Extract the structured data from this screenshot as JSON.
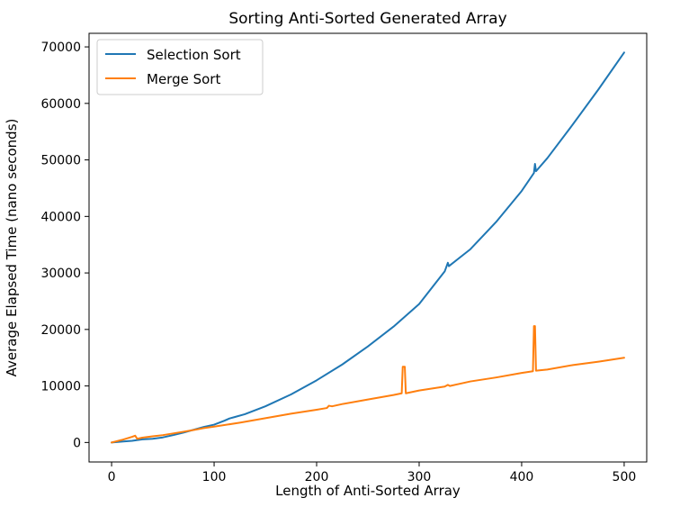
{
  "chart_data": {
    "type": "line",
    "title": "Sorting Anti-Sorted Generated Array",
    "xlabel": "Length of Anti-Sorted Array",
    "ylabel": "Average Elapsed Time (nano seconds)",
    "xlim": [
      -22,
      522
    ],
    "ylim": [
      -3450,
      72400
    ],
    "x_ticks": [
      0,
      100,
      200,
      300,
      400,
      500
    ],
    "y_ticks": [
      0,
      10000,
      20000,
      30000,
      40000,
      50000,
      60000,
      70000
    ],
    "x_tick_labels": [
      "0",
      "100",
      "200",
      "300",
      "400",
      "500"
    ],
    "y_tick_labels": [
      "0",
      "10000",
      "20000",
      "30000",
      "40000",
      "50000",
      "60000",
      "70000"
    ],
    "legend_position": "upper-left",
    "grid": false,
    "series": [
      {
        "name": "Selection Sort",
        "color": "#1f77b4",
        "points": [
          [
            0,
            0
          ],
          [
            10,
            150
          ],
          [
            20,
            300
          ],
          [
            30,
            550
          ],
          [
            40,
            650
          ],
          [
            50,
            900
          ],
          [
            60,
            1300
          ],
          [
            70,
            1750
          ],
          [
            80,
            2250
          ],
          [
            90,
            2750
          ],
          [
            100,
            3150
          ],
          [
            110,
            3850
          ],
          [
            115,
            4250
          ],
          [
            120,
            4500
          ],
          [
            130,
            5000
          ],
          [
            150,
            6400
          ],
          [
            175,
            8500
          ],
          [
            200,
            11000
          ],
          [
            225,
            13800
          ],
          [
            250,
            17000
          ],
          [
            275,
            20500
          ],
          [
            300,
            24500
          ],
          [
            325,
            30300
          ],
          [
            328,
            31800
          ],
          [
            329,
            31200
          ],
          [
            350,
            34200
          ],
          [
            375,
            39000
          ],
          [
            400,
            44500
          ],
          [
            412,
            47700
          ],
          [
            413,
            49300
          ],
          [
            414,
            48000
          ],
          [
            425,
            50300
          ],
          [
            450,
            56300
          ],
          [
            475,
            62500
          ],
          [
            500,
            69000
          ]
        ]
      },
      {
        "name": "Merge Sort",
        "color": "#ff7f0e",
        "points": [
          [
            0,
            0
          ],
          [
            10,
            450
          ],
          [
            20,
            1000
          ],
          [
            23,
            1200
          ],
          [
            25,
            650
          ],
          [
            30,
            850
          ],
          [
            40,
            1100
          ],
          [
            50,
            1300
          ],
          [
            60,
            1600
          ],
          [
            70,
            1900
          ],
          [
            80,
            2200
          ],
          [
            90,
            2550
          ],
          [
            100,
            2800
          ],
          [
            125,
            3500
          ],
          [
            150,
            4300
          ],
          [
            175,
            5100
          ],
          [
            200,
            5800
          ],
          [
            210,
            6100
          ],
          [
            212,
            6500
          ],
          [
            215,
            6400
          ],
          [
            225,
            6800
          ],
          [
            250,
            7600
          ],
          [
            275,
            8400
          ],
          [
            283,
            8700
          ],
          [
            284,
            13400
          ],
          [
            286,
            13400
          ],
          [
            287,
            8700
          ],
          [
            300,
            9200
          ],
          [
            325,
            9900
          ],
          [
            328,
            10200
          ],
          [
            330,
            10000
          ],
          [
            350,
            10800
          ],
          [
            375,
            11500
          ],
          [
            400,
            12300
          ],
          [
            411,
            12600
          ],
          [
            412,
            20600
          ],
          [
            413,
            20600
          ],
          [
            414,
            12700
          ],
          [
            425,
            12900
          ],
          [
            450,
            13700
          ],
          [
            475,
            14300
          ],
          [
            500,
            15000
          ]
        ]
      }
    ]
  }
}
